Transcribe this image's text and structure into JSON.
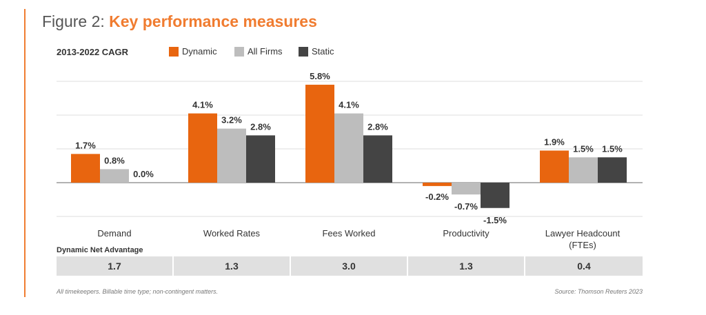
{
  "title": {
    "prefix": "Figure 2: ",
    "main": "Key performance measures"
  },
  "chart_data": {
    "type": "bar",
    "subtitle": "2013-2022 CAGR",
    "categories": [
      "Demand",
      "Worked Rates",
      "Fees Worked",
      "Productivity",
      "Lawyer Headcount (FTEs)"
    ],
    "series": [
      {
        "name": "Dynamic",
        "color": "#e8650f",
        "values": [
          1.7,
          4.1,
          5.8,
          -0.2,
          1.9
        ],
        "labels": [
          "1.7%",
          "4.1%",
          "5.8%",
          "-0.2%",
          "1.9%"
        ]
      },
      {
        "name": "All Firms",
        "color": "#bdbdbd",
        "values": [
          0.8,
          3.2,
          4.1,
          -0.7,
          1.5
        ],
        "labels": [
          "0.8%",
          "3.2%",
          "4.1%",
          "-0.7%",
          "1.5%"
        ]
      },
      {
        "name": "Static",
        "color": "#444444",
        "values": [
          0.0,
          2.8,
          2.8,
          -1.5,
          1.5
        ],
        "labels": [
          "0.0%",
          "2.8%",
          "2.8%",
          "-1.5%",
          "1.5%"
        ]
      }
    ],
    "unit": "%",
    "ylim": [
      -2,
      6
    ],
    "grid": true,
    "legend": "top"
  },
  "table": {
    "label": "Dynamic Net Advantage",
    "values": [
      "1.7",
      "1.3",
      "3.0",
      "1.3",
      "0.4"
    ]
  },
  "footer": {
    "note": "All timekeepers. Billable time type; non-contingent matters.",
    "source": "Source: Thomson Reuters 2023"
  }
}
